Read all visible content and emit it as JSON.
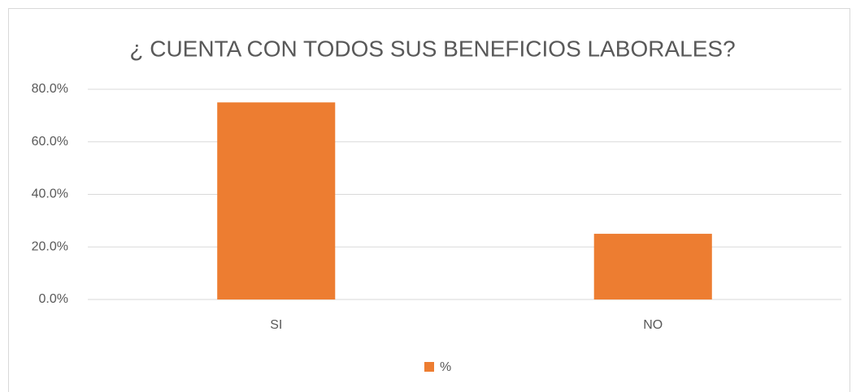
{
  "chart_data": {
    "type": "bar",
    "title": "¿ CUENTA CON TODOS SUS BENEFICIOS LABORALES?",
    "categories": [
      "SI",
      "NO"
    ],
    "series": [
      {
        "name": "%",
        "color": "#ed7d31",
        "values": [
          75,
          25
        ]
      }
    ],
    "ylim": [
      0,
      80
    ],
    "yticks": [
      {
        "value": 0,
        "label": "0.0%"
      },
      {
        "value": 20,
        "label": "20.0%"
      },
      {
        "value": 40,
        "label": "40.0%"
      },
      {
        "value": 60,
        "label": "60.0%"
      },
      {
        "value": 80,
        "label": "80.0%"
      }
    ],
    "grid": true,
    "legend": "bottom"
  }
}
